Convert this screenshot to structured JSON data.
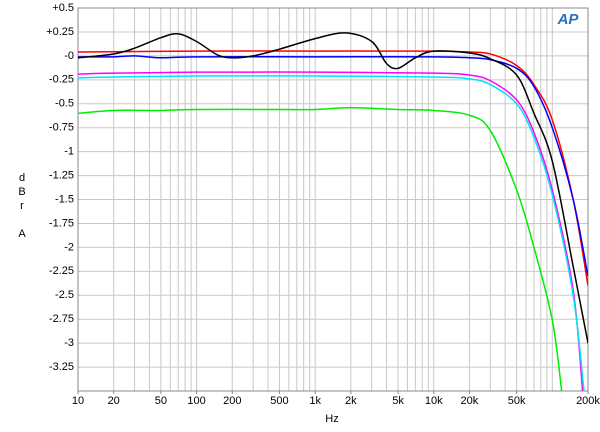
{
  "chart_data": {
    "type": "line",
    "x_label": "Hz",
    "y_label": "dBr A",
    "logo": "AP",
    "log_x": true,
    "grid": true,
    "xlim": [
      10,
      200000
    ],
    "ylim": [
      -3.5,
      0.5
    ],
    "xticks": [
      10,
      20,
      50,
      100,
      200,
      500,
      {
        "value": 1000,
        "label": "1k"
      },
      {
        "value": 2000,
        "label": "2k"
      },
      {
        "value": 5000,
        "label": "5k"
      },
      {
        "value": 10000,
        "label": "10k"
      },
      {
        "value": 20000,
        "label": "20k"
      },
      {
        "value": 50000,
        "label": "50k"
      },
      {
        "value": 200000,
        "label": "200k"
      }
    ],
    "x_grid": [
      10,
      20,
      30,
      40,
      50,
      60,
      70,
      80,
      90,
      100,
      200,
      300,
      400,
      500,
      600,
      700,
      800,
      900,
      1000,
      2000,
      3000,
      4000,
      5000,
      6000,
      7000,
      8000,
      9000,
      10000,
      20000,
      30000,
      40000,
      50000,
      60000,
      70000,
      80000,
      90000,
      100000,
      200000
    ],
    "yticks": [
      {
        "value": 0.5,
        "label": "+0.5"
      },
      {
        "value": 0.25,
        "label": "+0.25"
      },
      {
        "value": 0,
        "label": "-0"
      },
      -0.25,
      -0.5,
      -0.75,
      -1,
      -1.25,
      -1.5,
      -1.75,
      -2,
      -2.25,
      -2.5,
      -2.75,
      -3,
      -3.25
    ],
    "series": [
      {
        "color": "#ff0000",
        "x": [
          10,
          100,
          1000,
          10000,
          20000,
          30000,
          50000,
          70000,
          100000,
          150000,
          200000
        ],
        "values": [
          0.04,
          0.05,
          0.05,
          0.05,
          0.04,
          0.02,
          -0.1,
          -0.3,
          -0.67,
          -1.5,
          -2.4
        ]
      },
      {
        "color": "#0000ff",
        "x": [
          10,
          20,
          30,
          50,
          100,
          1000,
          10000,
          20000,
          30000,
          50000,
          70000,
          100000,
          150000,
          200000
        ],
        "values": [
          -0.01,
          -0.01,
          0,
          -0.02,
          -0.01,
          -0.01,
          -0.01,
          -0.02,
          -0.04,
          -0.13,
          -0.32,
          -0.75,
          -1.5,
          -2.3
        ]
      },
      {
        "color": "#000000",
        "x": [
          10,
          20,
          30,
          50,
          70,
          100,
          150,
          200,
          300,
          500,
          1000,
          1800,
          3000,
          4000,
          5000,
          7000,
          10000,
          20000,
          30000,
          50000,
          70000,
          100000,
          150000,
          200000
        ],
        "values": [
          -0.02,
          0.02,
          0.08,
          0.19,
          0.23,
          0.15,
          0.01,
          -0.02,
          0,
          0.07,
          0.18,
          0.24,
          0.15,
          -0.08,
          -0.13,
          -0.02,
          0.05,
          0.03,
          -0.03,
          -0.2,
          -0.6,
          -1.1,
          -2.2,
          -3.0
        ]
      },
      {
        "color": "#ff00ff",
        "x": [
          10,
          20,
          100,
          1000,
          10000,
          20000,
          30000,
          50000,
          70000,
          100000,
          150000,
          180000
        ],
        "values": [
          -0.19,
          -0.18,
          -0.17,
          -0.17,
          -0.18,
          -0.2,
          -0.26,
          -0.46,
          -0.8,
          -1.4,
          -2.45,
          -3.5
        ]
      },
      {
        "color": "#00e5ee",
        "x": [
          10,
          20,
          100,
          1000,
          10000,
          20000,
          30000,
          50000,
          70000,
          100000,
          150000,
          185000
        ],
        "values": [
          -0.23,
          -0.22,
          -0.21,
          -0.21,
          -0.22,
          -0.24,
          -0.3,
          -0.5,
          -0.85,
          -1.45,
          -2.5,
          -3.5
        ]
      },
      {
        "color": "#00ee00",
        "x": [
          10,
          20,
          50,
          100,
          500,
          1000,
          2000,
          5000,
          10000,
          20000,
          30000,
          50000,
          70000,
          100000,
          120000
        ],
        "values": [
          -0.6,
          -0.57,
          -0.57,
          -0.56,
          -0.56,
          -0.56,
          -0.54,
          -0.56,
          -0.57,
          -0.62,
          -0.78,
          -1.4,
          -2.0,
          -2.76,
          -3.5
        ]
      }
    ]
  }
}
